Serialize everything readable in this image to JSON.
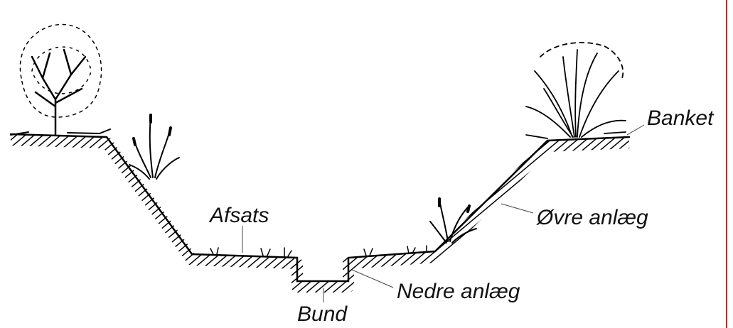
{
  "labels": [
    "Banket",
    "Afsats",
    "Øvre anlæg",
    "Nedre anlæg",
    "Bund"
  ]
}
